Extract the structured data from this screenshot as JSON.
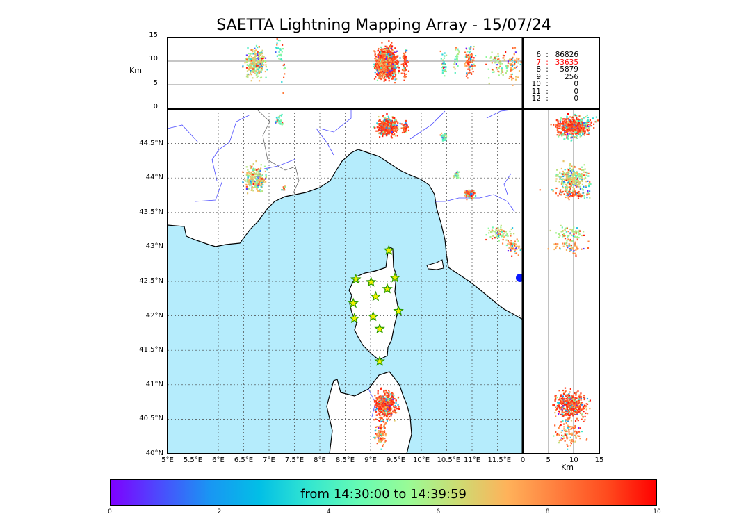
{
  "title": "SAETTA Lightning Mapping Array - 15/07/24",
  "stats": [
    {
      "k": "6",
      "v": "86826",
      "color": "#000000"
    },
    {
      "k": "7",
      "v": "33635",
      "color": "#ff0000"
    },
    {
      "k": "8",
      "v": "5879",
      "color": "#000000"
    },
    {
      "k": "9",
      "v": "256",
      "color": "#000000"
    },
    {
      "k": "10",
      "v": "0",
      "color": "#000000"
    },
    {
      "k": "11",
      "v": "0",
      "color": "#000000"
    },
    {
      "k": "12",
      "v": "0",
      "color": "#000000"
    }
  ],
  "colorbar": {
    "label": "from 14:30:00 to 14:39:59",
    "ticks": [
      "0",
      "2",
      "4",
      "6",
      "8",
      "10"
    ]
  },
  "chart_data": {
    "type": "scatter",
    "title": "SAETTA Lightning Mapping Array - 15/07/24",
    "map": {
      "xlim": [
        5,
        12
      ],
      "ylim": [
        40,
        45
      ],
      "xticks": [
        "5°E",
        "5.5°E",
        "6°E",
        "6.5°E",
        "7°E",
        "7.5°E",
        "8°E",
        "8.5°E",
        "9°E",
        "9.5°E",
        "10°E",
        "10.5°E",
        "11°E",
        "11.5°E"
      ],
      "yticks": [
        "40°N",
        "40.5°N",
        "41°N",
        "41.5°N",
        "42°N",
        "42.5°N",
        "43°N",
        "43.5°N",
        "44°N",
        "44.5°N"
      ]
    },
    "alt_panel": {
      "ylabel": "Km",
      "ylim": [
        0,
        15
      ],
      "yticks": [
        "0",
        "5",
        "10",
        "15"
      ]
    },
    "lat_alt_panel": {
      "xlabel": "Km",
      "xlim": [
        0,
        15
      ],
      "xticks": [
        "0",
        "5",
        "10",
        "15"
      ]
    },
    "stations": [
      [
        9.36,
        42.95
      ],
      [
        8.71,
        42.53
      ],
      [
        9.01,
        42.49
      ],
      [
        9.48,
        42.55
      ],
      [
        9.33,
        42.39
      ],
      [
        9.1,
        42.28
      ],
      [
        8.66,
        42.18
      ],
      [
        9.55,
        42.07
      ],
      [
        9.05,
        41.99
      ],
      [
        8.68,
        41.96
      ],
      [
        9.18,
        41.81
      ],
      [
        9.18,
        41.34
      ]
    ],
    "clusters": [
      {
        "lon": 9.33,
        "lat": 44.75,
        "slon": 0.09,
        "slat": 0.06,
        "n": 500,
        "alt": 10,
        "t": 8.5
      },
      {
        "lon": 9.67,
        "lat": 44.73,
        "slon": 0.03,
        "slat": 0.04,
        "n": 60,
        "alt": 10,
        "t": 8.3
      },
      {
        "lon": 6.75,
        "lat": 43.99,
        "slon": 0.1,
        "slat": 0.09,
        "n": 260,
        "alt": 9.5,
        "t": 6
      },
      {
        "lon": 9.3,
        "lat": 40.7,
        "slon": 0.1,
        "slat": 0.1,
        "n": 450,
        "alt": 9.5,
        "t": 8.6
      },
      {
        "lon": 9.2,
        "lat": 40.28,
        "slon": 0.05,
        "slat": 0.08,
        "n": 90,
        "alt": 9,
        "t": 7.5
      },
      {
        "lon": 10.95,
        "lat": 43.77,
        "slon": 0.05,
        "slat": 0.03,
        "n": 90,
        "alt": 10,
        "t": 8
      },
      {
        "lon": 11.55,
        "lat": 43.2,
        "slon": 0.12,
        "slat": 0.05,
        "n": 70,
        "alt": 9.5,
        "t": 5.5
      },
      {
        "lon": 11.8,
        "lat": 43.0,
        "slon": 0.07,
        "slat": 0.06,
        "n": 60,
        "alt": 9,
        "t": 7
      },
      {
        "lon": 10.45,
        "lat": 44.6,
        "slon": 0.04,
        "slat": 0.03,
        "n": 30,
        "alt": 10,
        "t": 4
      },
      {
        "lon": 10.7,
        "lat": 44.05,
        "slon": 0.03,
        "slat": 0.03,
        "n": 25,
        "alt": 10,
        "t": 5
      },
      {
        "lon": 7.2,
        "lat": 44.85,
        "slon": 0.04,
        "slat": 0.04,
        "n": 25,
        "alt": 12,
        "t": 4
      },
      {
        "lon": 7.3,
        "lat": 43.85,
        "slon": 0.02,
        "slat": 0.02,
        "n": 10,
        "alt": 8,
        "t": 8
      }
    ]
  }
}
